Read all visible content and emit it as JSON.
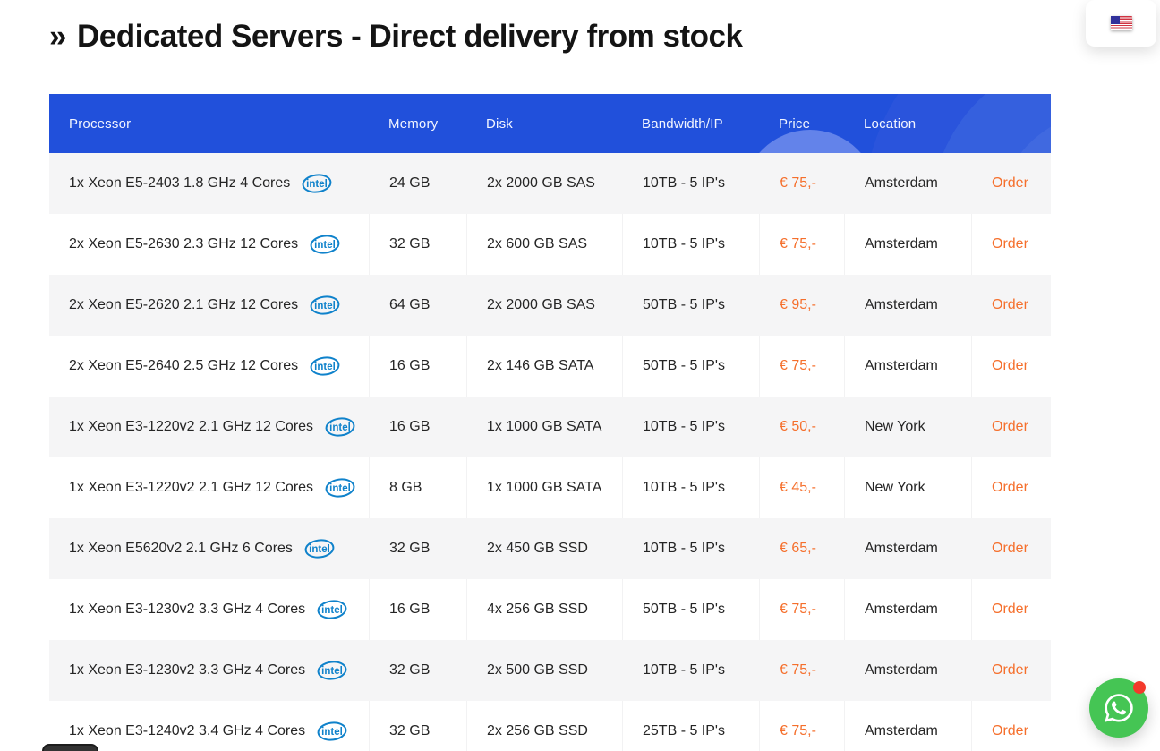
{
  "page": {
    "title_marker": "»",
    "title": "Dedicated Servers - Direct delivery from stock"
  },
  "colors": {
    "header_blue": "#2150db",
    "accent_orange": "#f56f2c",
    "row_alt_gray": "#f5f5f6",
    "intel_blue": "#0f82cb",
    "whatsapp_green": "#45c554",
    "notification_red": "#f3392b"
  },
  "icons": {
    "intel_logo_label": "intel",
    "language_flag": "us-flag-icon",
    "chat": "whatsapp-icon"
  },
  "table": {
    "headers": [
      "Processor",
      "Memory",
      "Disk",
      "Bandwidth/IP",
      "Price",
      "Location"
    ],
    "order_label": "Order",
    "rows": [
      {
        "processor": "1x Xeon E5-2403 1.8 GHz 4 Cores",
        "memory": "24 GB",
        "disk": "2x 2000 GB SAS",
        "bandwidth": "10TB - 5 IP's",
        "price": "€ 75,-",
        "location": "Amsterdam"
      },
      {
        "processor": "2x Xeon E5-2630 2.3 GHz 12 Cores",
        "memory": "32 GB",
        "disk": "2x 600 GB SAS",
        "bandwidth": "10TB - 5 IP's",
        "price": "€ 75,-",
        "location": "Amsterdam"
      },
      {
        "processor": "2x Xeon E5-2620 2.1 GHz 12 Cores",
        "memory": "64 GB",
        "disk": "2x 2000 GB SAS",
        "bandwidth": "50TB - 5 IP's",
        "price": "€ 95,-",
        "location": "Amsterdam"
      },
      {
        "processor": "2x Xeon E5-2640 2.5 GHz 12 Cores",
        "memory": "16 GB",
        "disk": "2x 146 GB SATA",
        "bandwidth": "50TB - 5 IP's",
        "price": "€ 75,-",
        "location": "Amsterdam"
      },
      {
        "processor": "1x Xeon E3-1220v2 2.1 GHz 12 Cores",
        "memory": "16 GB",
        "disk": "1x 1000 GB SATA",
        "bandwidth": "10TB - 5 IP's",
        "price": "€ 50,-",
        "location": "New York"
      },
      {
        "processor": "1x Xeon E3-1220v2 2.1 GHz 12 Cores",
        "memory": "8 GB",
        "disk": "1x 1000 GB SATA",
        "bandwidth": "10TB - 5 IP's",
        "price": "€ 45,-",
        "location": "New York"
      },
      {
        "processor": "1x Xeon E5620v2 2.1 GHz 6 Cores",
        "memory": "32 GB",
        "disk": "2x 450 GB SSD",
        "bandwidth": "10TB - 5 IP's",
        "price": "€ 65,-",
        "location": "Amsterdam"
      },
      {
        "processor": "1x Xeon E3-1230v2 3.3 GHz 4 Cores",
        "memory": "16 GB",
        "disk": "4x 256 GB SSD",
        "bandwidth": "50TB - 5 IP's",
        "price": "€ 75,-",
        "location": "Amsterdam"
      },
      {
        "processor": "1x Xeon E3-1230v2 3.3 GHz 4 Cores",
        "memory": "32 GB",
        "disk": "2x 500 GB SSD",
        "bandwidth": "10TB - 5 IP's",
        "price": "€ 75,-",
        "location": "Amsterdam"
      },
      {
        "processor": "1x Xeon E3-1240v2 3.4 GHz 4 Cores",
        "memory": "32 GB",
        "disk": "2x 256 GB SSD",
        "bandwidth": "25TB - 5 IP's",
        "price": "€ 75,-",
        "location": "Amsterdam"
      }
    ]
  }
}
